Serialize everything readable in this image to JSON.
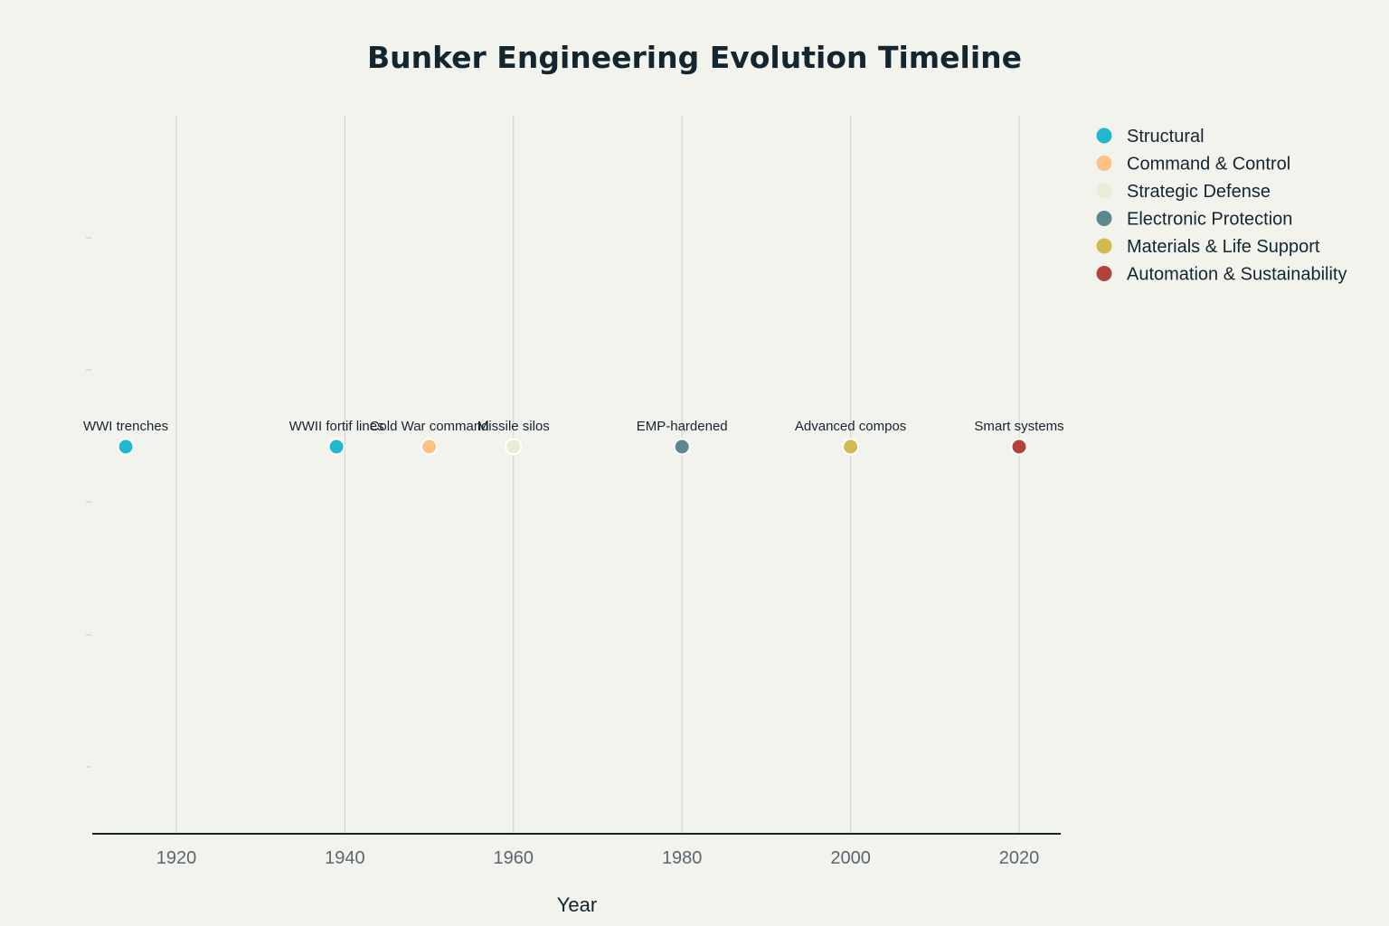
{
  "chart_data": {
    "type": "scatter",
    "title": "Bunker Engineering Evolution Timeline",
    "xlabel": "Year",
    "ylabel": "",
    "xlim": [
      1910,
      2025
    ],
    "xticks": [
      1920,
      1940,
      1960,
      1980,
      2000,
      2020
    ],
    "grid": "vertical",
    "legend_position": "right",
    "series": [
      {
        "name": "Structural",
        "color": "#1fb8cd",
        "points": [
          {
            "x": 1914,
            "label": "WWI trenches"
          },
          {
            "x": 1939,
            "label": "WWII fortif lines"
          }
        ]
      },
      {
        "name": "Command & Control",
        "color": "#ffc185",
        "points": [
          {
            "x": 1950,
            "label": "Cold War command"
          }
        ]
      },
      {
        "name": "Strategic Defense",
        "color": "#ecebd5",
        "points": [
          {
            "x": 1960,
            "label": "Missile silos"
          }
        ]
      },
      {
        "name": "Electronic Protection",
        "color": "#5d878f",
        "points": [
          {
            "x": 1980,
            "label": "EMP-hardened"
          }
        ]
      },
      {
        "name": "Materials & Life Support",
        "color": "#d2ba4c",
        "points": [
          {
            "x": 2000,
            "label": "Advanced compos"
          }
        ]
      },
      {
        "name": "Automation & Sustainability",
        "color": "#b4413c",
        "points": [
          {
            "x": 2020,
            "label": "Smart systems"
          }
        ]
      }
    ]
  }
}
